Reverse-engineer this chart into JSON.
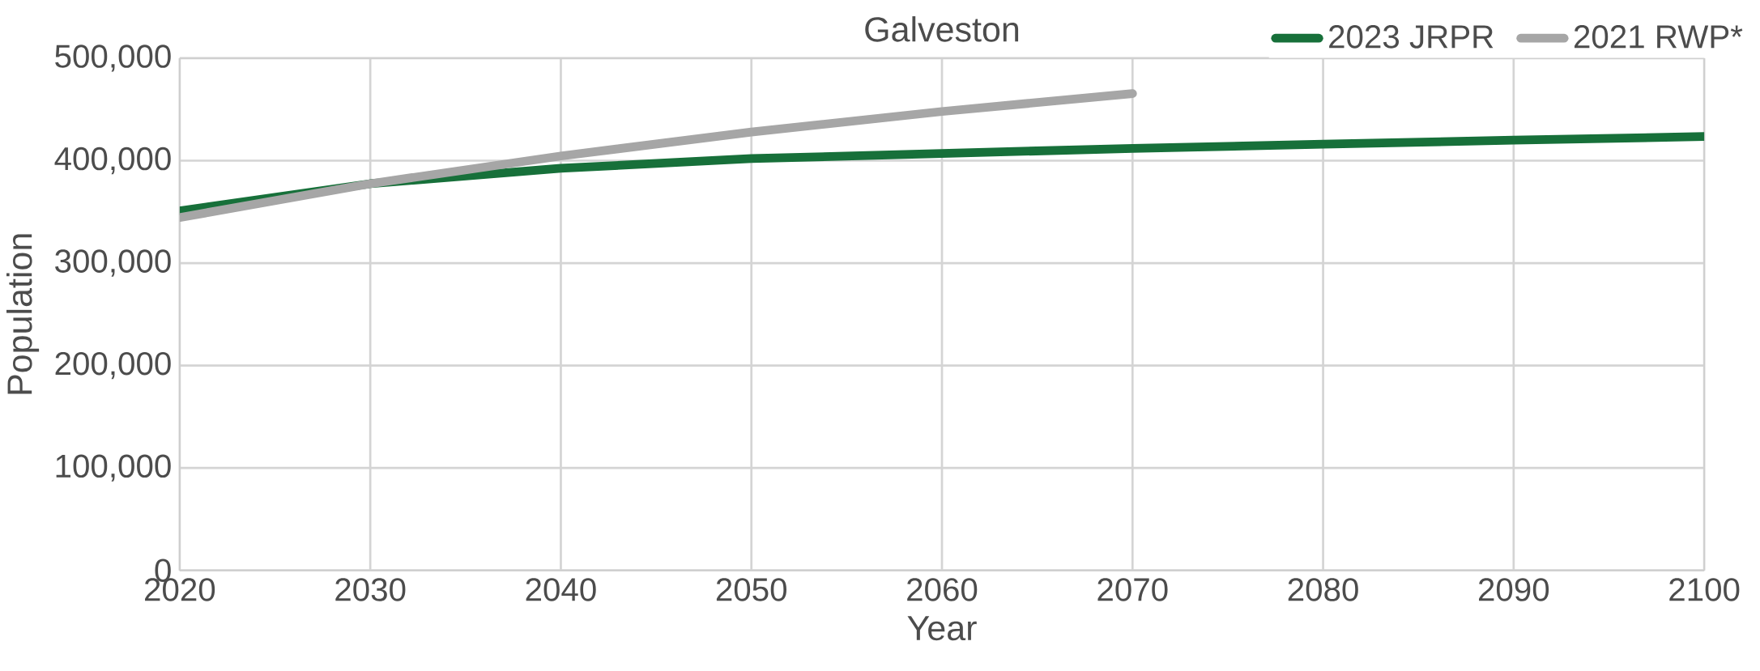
{
  "chart_data": {
    "type": "line",
    "title": "Galveston",
    "xlabel": "Year",
    "ylabel": "Population",
    "x": [
      2020,
      2030,
      2040,
      2050,
      2060,
      2070,
      2080,
      2090,
      2100
    ],
    "series": [
      {
        "name": "2023 JRPR",
        "color": "#17703a",
        "values": [
          351000,
          377500,
          392500,
          402000,
          407000,
          412000,
          416000,
          420000,
          423500
        ]
      },
      {
        "name": "2021 RWP*",
        "color": "#a6a6a6",
        "values": [
          344500,
          377500,
          404500,
          428000,
          448000,
          465500,
          null,
          null,
          null
        ]
      }
    ],
    "xlim": [
      2020,
      2100
    ],
    "xticks": [
      2020,
      2030,
      2040,
      2050,
      2060,
      2070,
      2080,
      2090,
      2100
    ],
    "ylim": [
      0,
      500000
    ],
    "yticks": [
      {
        "value": 0,
        "label": "0"
      },
      {
        "value": 100000,
        "label": "100,000"
      },
      {
        "value": 200000,
        "label": "200,000"
      },
      {
        "value": 300000,
        "label": "300,000"
      },
      {
        "value": 400000,
        "label": "400,000"
      },
      {
        "value": 500000,
        "label": "500,000"
      }
    ],
    "grid": true,
    "legend": "top right",
    "marker": "none",
    "line_style": "solid"
  }
}
